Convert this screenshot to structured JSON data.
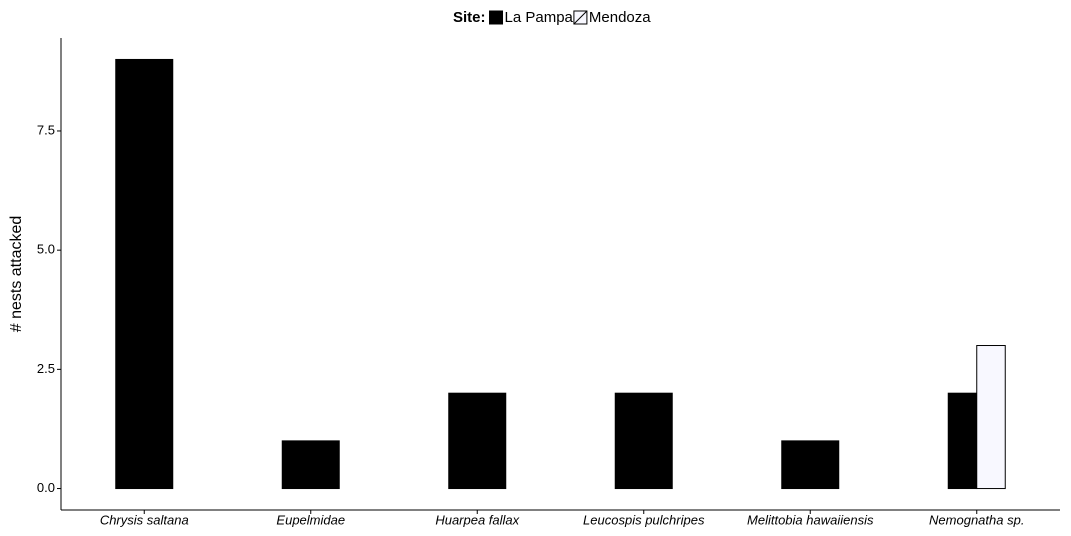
{
  "chart_data": {
    "type": "bar",
    "legend_title": "Site:",
    "y_label": "# nests attacked",
    "categories": [
      "Chrysis saltana",
      "Eupelmidae",
      "Huarpea fallax",
      "Leucospis pulchripes",
      "Melittobia hawaiiensis",
      "Nemognatha sp."
    ],
    "series": [
      {
        "name": "La Pampa",
        "color": "#000000",
        "values": [
          9,
          1,
          2,
          2,
          1,
          2
        ]
      },
      {
        "name": "Mendoza",
        "color": "#f8f8ff",
        "values": [
          null,
          null,
          null,
          null,
          null,
          3
        ]
      }
    ],
    "ylim": [
      -0.45,
      9.45
    ],
    "yticks": [
      {
        "value": 0,
        "label": "0.0"
      },
      {
        "value": 2.5,
        "label": "2.5"
      },
      {
        "value": 5,
        "label": "5.0"
      },
      {
        "value": 7.5,
        "label": "7.5"
      }
    ],
    "grid": false,
    "legend_position": "top"
  }
}
